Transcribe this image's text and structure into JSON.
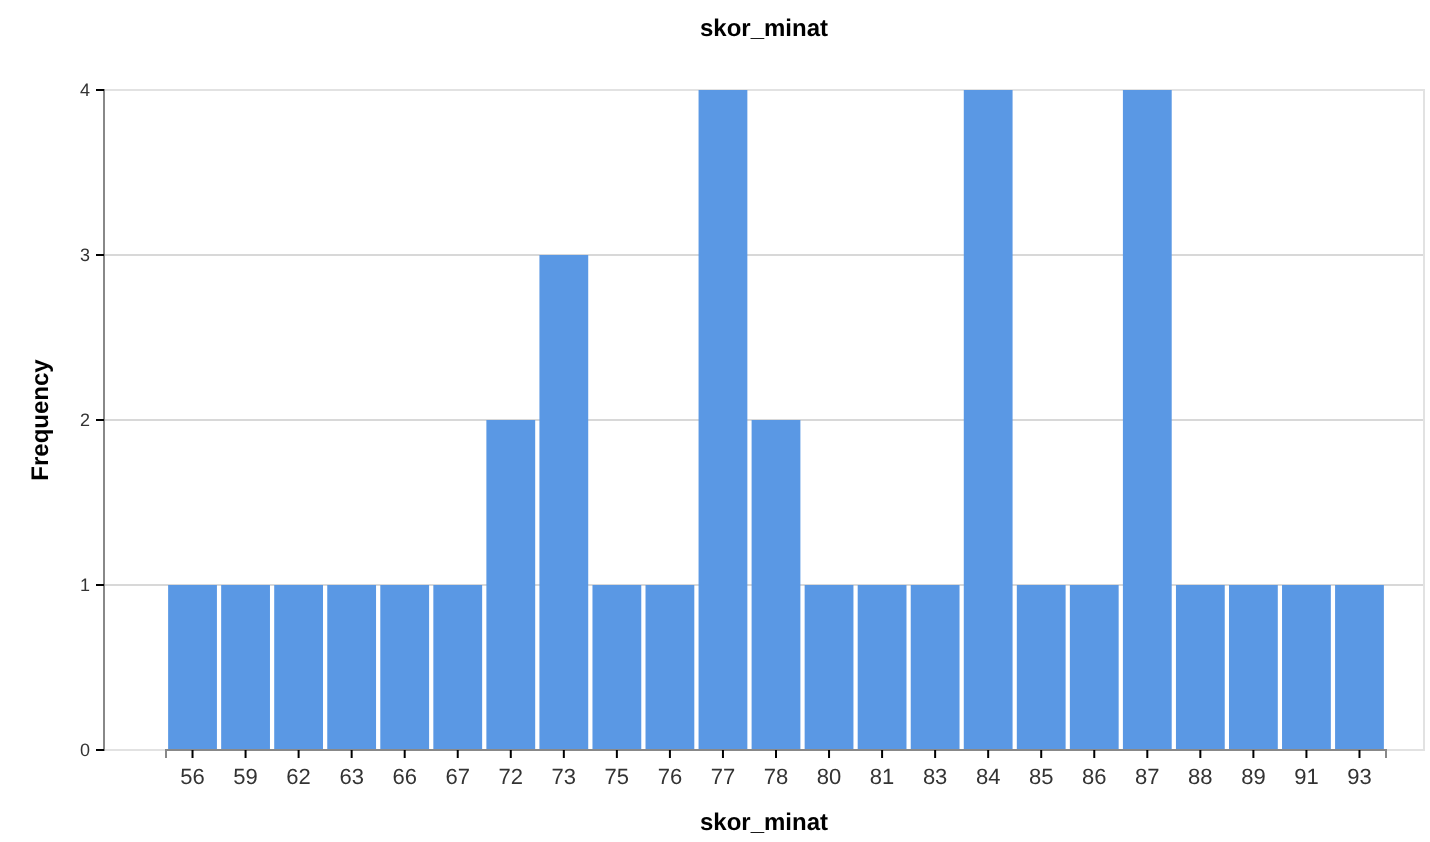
{
  "chart_data": {
    "type": "bar",
    "title": "skor_minat",
    "xlabel": "skor_minat",
    "ylabel": "Frequency",
    "categories": [
      "56",
      "59",
      "62",
      "63",
      "66",
      "67",
      "72",
      "73",
      "75",
      "76",
      "77",
      "78",
      "80",
      "81",
      "83",
      "84",
      "85",
      "86",
      "87",
      "88",
      "89",
      "91",
      "93"
    ],
    "values": [
      1,
      1,
      1,
      1,
      1,
      1,
      2,
      3,
      1,
      1,
      4,
      2,
      1,
      1,
      1,
      4,
      1,
      1,
      4,
      1,
      1,
      1,
      1
    ],
    "color": "#5a98e4",
    "ylim": [
      0,
      4
    ],
    "yticks": [
      0,
      1,
      2,
      3,
      4
    ],
    "grid": "y"
  }
}
